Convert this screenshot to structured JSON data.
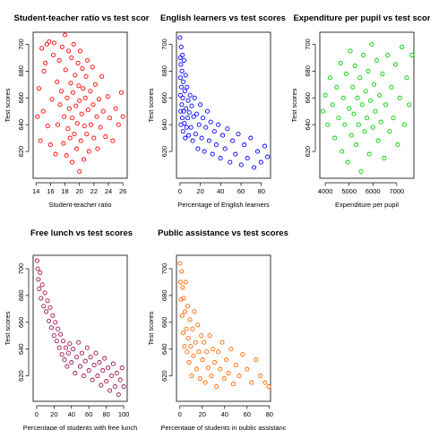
{
  "chart_data": [
    {
      "type": "scatter",
      "title": "Student-teacher ratio vs test scor",
      "xlabel": "Student-teacher ratio",
      "ylabel": "Test scores",
      "color": "#ff0000",
      "xlim": [
        13.6,
        26.6
      ],
      "ylim": [
        600,
        709
      ],
      "xticks": [
        14,
        16,
        18,
        20,
        22,
        24,
        26
      ],
      "yticks": [
        620,
        640,
        660,
        680,
        700
      ],
      "series_description": "~420 points; cloud centered near x 19-21, y 640-670; spread x 14-26, y 605-706",
      "points": [
        [
          14.2,
          646
        ],
        [
          14.4,
          667
        ],
        [
          14.6,
          628
        ],
        [
          14.8,
          697
        ],
        [
          15.0,
          650
        ],
        [
          15.1,
          680
        ],
        [
          15.3,
          686
        ],
        [
          15.5,
          700
        ],
        [
          15.6,
          639
        ],
        [
          15.8,
          702
        ],
        [
          16.0,
          625
        ],
        [
          16.2,
          659
        ],
        [
          16.4,
          692
        ],
        [
          16.5,
          701
        ],
        [
          16.7,
          618
        ],
        [
          16.9,
          672
        ],
        [
          17.0,
          640
        ],
        [
          17.2,
          688
        ],
        [
          17.3,
          655
        ],
        [
          17.5,
          665
        ],
        [
          17.6,
          698
        ],
        [
          17.8,
          626
        ],
        [
          17.9,
          646
        ],
        [
          18.0,
          707
        ],
        [
          18.1,
          681
        ],
        [
          18.2,
          617
        ],
        [
          18.3,
          660
        ],
        [
          18.4,
          637
        ],
        [
          18.5,
          695
        ],
        [
          18.6,
          652
        ],
        [
          18.7,
          630
        ],
        [
          18.8,
          671
        ],
        [
          18.9,
          690
        ],
        [
          19.0,
          612
        ],
        [
          19.0,
          645
        ],
        [
          19.1,
          664
        ],
        [
          19.2,
          700
        ],
        [
          19.3,
          633
        ],
        [
          19.4,
          677
        ],
        [
          19.5,
          654
        ],
        [
          19.6,
          622
        ],
        [
          19.7,
          641
        ],
        [
          19.8,
          686
        ],
        [
          19.9,
          669
        ],
        [
          20.0,
          605
        ],
        [
          20.0,
          658
        ],
        [
          20.1,
          695
        ],
        [
          20.2,
          628
        ],
        [
          20.3,
          648
        ],
        [
          20.4,
          682
        ],
        [
          20.5,
          667
        ],
        [
          20.6,
          614
        ],
        [
          20.7,
          639
        ],
        [
          20.8,
          660
        ],
        [
          20.9,
          676
        ],
        [
          21.0,
          633
        ],
        [
          21.1,
          688
        ],
        [
          21.2,
          651
        ],
        [
          21.3,
          620
        ],
        [
          21.5,
          665
        ],
        [
          21.6,
          640
        ],
        [
          21.8,
          683
        ],
        [
          21.9,
          655
        ],
        [
          22.0,
          630
        ],
        [
          22.2,
          670
        ],
        [
          22.4,
          646
        ],
        [
          22.5,
          622
        ],
        [
          22.7,
          659
        ],
        [
          22.9,
          638
        ],
        [
          23.1,
          676
        ],
        [
          23.3,
          650
        ],
        [
          23.6,
          631
        ],
        [
          23.9,
          661
        ],
        [
          24.2,
          645
        ],
        [
          24.6,
          628
        ],
        [
          25.0,
          652
        ],
        [
          25.4,
          640
        ],
        [
          25.8,
          664
        ],
        [
          26.0,
          646
        ]
      ]
    },
    {
      "type": "scatter",
      "title": "English learners vs test scores",
      "xlabel": "Percentage of English learners",
      "ylabel": "Test scores",
      "color": "#0000ff",
      "xlim": [
        -3.4,
        89
      ],
      "ylim": [
        600,
        709
      ],
      "xticks": [
        0,
        20,
        40,
        60,
        80
      ],
      "yticks": [
        620,
        640,
        660,
        680,
        700
      ],
      "series_description": "~420 points; dense column at x 0-10 spanning y 625-706, decreasing trend to y ~620 near x 85",
      "points": [
        [
          0.0,
          705
        ],
        [
          0.2,
          690
        ],
        [
          0.4,
          675
        ],
        [
          0.5,
          662
        ],
        [
          0.7,
          650
        ],
        [
          0.9,
          685
        ],
        [
          1.0,
          640
        ],
        [
          1.3,
          698
        ],
        [
          1.5,
          668
        ],
        [
          1.8,
          655
        ],
        [
          2.0,
          680
        ],
        [
          2.3,
          645
        ],
        [
          2.5,
          692
        ],
        [
          2.8,
          660
        ],
        [
          3.0,
          635
        ],
        [
          3.3,
          672
        ],
        [
          3.6,
          650
        ],
        [
          4.0,
          688
        ],
        [
          4.4,
          641
        ],
        [
          4.8,
          665
        ],
        [
          5.2,
          630
        ],
        [
          5.6,
          677
        ],
        [
          6.0,
          652
        ],
        [
          6.5,
          638
        ],
        [
          7.0,
          668
        ],
        [
          7.5,
          645
        ],
        [
          8.0,
          658
        ],
        [
          8.6,
          632
        ],
        [
          9.2,
          649
        ],
        [
          10.0,
          662
        ],
        [
          10.8,
          638
        ],
        [
          11.6,
          654
        ],
        [
          12.5,
          628
        ],
        [
          13.4,
          646
        ],
        [
          14.4,
          660
        ],
        [
          15.4,
          633
        ],
        [
          16.5,
          648
        ],
        [
          17.6,
          622
        ],
        [
          18.8,
          640
        ],
        [
          20.0,
          655
        ],
        [
          21.3,
          630
        ],
        [
          22.6,
          645
        ],
        [
          24.0,
          620
        ],
        [
          25.5,
          638
        ],
        [
          27.0,
          650
        ],
        [
          28.6,
          628
        ],
        [
          30.2,
          642
        ],
        [
          32.0,
          618
        ],
        [
          33.8,
          635
        ],
        [
          35.7,
          625
        ],
        [
          37.7,
          640
        ],
        [
          39.8,
          615
        ],
        [
          42.0,
          632
        ],
        [
          44.3,
          622
        ],
        [
          46.7,
          637
        ],
        [
          49.2,
          612
        ],
        [
          51.8,
          628
        ],
        [
          54.5,
          618
        ],
        [
          57.3,
          633
        ],
        [
          60.2,
          610
        ],
        [
          63.2,
          625
        ],
        [
          66.3,
          615
        ],
        [
          69.5,
          630
        ],
        [
          72.8,
          608
        ],
        [
          76.2,
          620
        ],
        [
          79.7,
          612
        ],
        [
          83.3,
          624
        ],
        [
          86.0,
          616
        ]
      ]
    },
    {
      "type": "scatter",
      "title": "Expenditure per pupil vs test scor",
      "xlabel": "Expenditure per pupil",
      "ylabel": "Test scores",
      "color": "#00cc00",
      "xlim": [
        3770,
        7720
      ],
      "ylim": [
        600,
        709
      ],
      "xticks": [
        4000,
        5000,
        6000,
        7000
      ],
      "yticks": [
        620,
        640,
        660,
        680,
        700
      ],
      "series_description": "~420 points; cloud centered near x 5000-6000, y 635-680; spread x 3900-7650, y 605-707",
      "points": [
        [
          3900,
          650
        ],
        [
          4000,
          662
        ],
        [
          4100,
          640
        ],
        [
          4200,
          675
        ],
        [
          4300,
          655
        ],
        [
          4400,
          630
        ],
        [
          4480,
          668
        ],
        [
          4560,
          645
        ],
        [
          4640,
          686
        ],
        [
          4700,
          620
        ],
        [
          4760,
          660
        ],
        [
          4820,
          640
        ],
        [
          4880,
          678
        ],
        [
          4940,
          612
        ],
        [
          5000,
          652
        ],
        [
          5050,
          695
        ],
        [
          5100,
          632
        ],
        [
          5150,
          668
        ],
        [
          5200,
          648
        ],
        [
          5250,
          684
        ],
        [
          5300,
          625
        ],
        [
          5350,
          660
        ],
        [
          5400,
          640
        ],
        [
          5450,
          675
        ],
        [
          5500,
          605
        ],
        [
          5550,
          655
        ],
        [
          5600,
          692
        ],
        [
          5650,
          635
        ],
        [
          5700,
          665
        ],
        [
          5750,
          645
        ],
        [
          5800,
          680
        ],
        [
          5850,
          618
        ],
        [
          5900,
          658
        ],
        [
          5950,
          700
        ],
        [
          6000,
          638
        ],
        [
          6050,
          670
        ],
        [
          6100,
          650
        ],
        [
          6160,
          688
        ],
        [
          6220,
          628
        ],
        [
          6280,
          662
        ],
        [
          6340,
          642
        ],
        [
          6400,
          678
        ],
        [
          6470,
          615
        ],
        [
          6540,
          655
        ],
        [
          6620,
          692
        ],
        [
          6700,
          635
        ],
        [
          6780,
          668
        ],
        [
          6860,
          645
        ],
        [
          6950,
          685
        ],
        [
          7040,
          625
        ],
        [
          7130,
          660
        ],
        [
          7220,
          698
        ],
        [
          7320,
          640
        ],
        [
          7420,
          675
        ],
        [
          7520,
          655
        ],
        [
          7640,
          692
        ]
      ]
    },
    {
      "type": "scatter",
      "title": "Free lunch vs test scores",
      "xlabel": "Percentage of students with free lunch",
      "ylabel": "Test scores",
      "color": "#a0144f",
      "xlim": [
        -4,
        104
      ],
      "ylim": [
        601,
        710
      ],
      "xticks": [
        0,
        20,
        40,
        60,
        80,
        100
      ],
      "yticks": [
        620,
        640,
        660,
        680,
        700
      ],
      "series_description": "~420 points; strong negative linear trend from y ~700 at x 0 to y ~620 at x 100",
      "points": [
        [
          0.5,
          706
        ],
        [
          1.2,
          700
        ],
        [
          2.0,
          692
        ],
        [
          3.0,
          685
        ],
        [
          4.0,
          697
        ],
        [
          5.0,
          678
        ],
        [
          6.5,
          688
        ],
        [
          8.0,
          672
        ],
        [
          9.5,
          682
        ],
        [
          11.0,
          668
        ],
        [
          12.5,
          676
        ],
        [
          14.0,
          661
        ],
        [
          15.5,
          671
        ],
        [
          17.0,
          656
        ],
        [
          18.5,
          665
        ],
        [
          20.0,
          650
        ],
        [
          21.5,
          660
        ],
        [
          23.0,
          646
        ],
        [
          24.5,
          655
        ],
        [
          26.0,
          641
        ],
        [
          27.5,
          651
        ],
        [
          29.0,
          636
        ],
        [
          30.5,
          646
        ],
        [
          32.0,
          632
        ],
        [
          33.5,
          641
        ],
        [
          35.0,
          627
        ],
        [
          36.5,
          637
        ],
        [
          38.0,
          644
        ],
        [
          40.0,
          630
        ],
        [
          42.0,
          640
        ],
        [
          44.0,
          622
        ],
        [
          46.0,
          634
        ],
        [
          48.0,
          645
        ],
        [
          50.0,
          627
        ],
        [
          52.0,
          637
        ],
        [
          54.0,
          620
        ],
        [
          56.0,
          631
        ],
        [
          58.0,
          641
        ],
        [
          60.0,
          624
        ],
        [
          62.0,
          634
        ],
        [
          64.0,
          617
        ],
        [
          66.0,
          628
        ],
        [
          68.0,
          637
        ],
        [
          70.0,
          620
        ],
        [
          72.0,
          630
        ],
        [
          74.0,
          613
        ],
        [
          76.0,
          624
        ],
        [
          78.0,
          633
        ],
        [
          80.0,
          616
        ],
        [
          82.0,
          626
        ],
        [
          84.0,
          609
        ],
        [
          86.0,
          620
        ],
        [
          88.0,
          629
        ],
        [
          90.0,
          612
        ],
        [
          92.0,
          622
        ],
        [
          94.0,
          606
        ],
        [
          96.0,
          617
        ],
        [
          98.0,
          626
        ],
        [
          100.0,
          612
        ]
      ]
    },
    {
      "type": "scatter",
      "title": "Public assistance vs test scores",
      "xlabel": "Percentage of students in public assistanc",
      "ylabel": "Test scores",
      "color": "#ff6600",
      "xlim": [
        -3,
        81
      ],
      "ylim": [
        601,
        710
      ],
      "xticks": [
        0,
        20,
        40,
        60,
        80
      ],
      "yticks": [
        620,
        640,
        660,
        680,
        700
      ],
      "series_description": "~420 points; dense at x 0-30 spanning y 615-706, decreasing trend, sparse tail to x ~80",
      "points": [
        [
          0.0,
          704
        ],
        [
          0.5,
          690
        ],
        [
          1.0,
          677
        ],
        [
          1.5,
          698
        ],
        [
          2.0,
          665
        ],
        [
          2.5,
          686
        ],
        [
          3.0,
          652
        ],
        [
          3.5,
          678
        ],
        [
          4.0,
          642
        ],
        [
          4.6,
          668
        ],
        [
          5.2,
          690
        ],
        [
          5.8,
          655
        ],
        [
          6.4,
          638
        ],
        [
          7.0,
          672
        ],
        [
          7.6,
          648
        ],
        [
          8.3,
          630
        ],
        [
          9.0,
          662
        ],
        [
          9.7,
          642
        ],
        [
          10.5,
          620
        ],
        [
          11.3,
          655
        ],
        [
          12.1,
          635
        ],
        [
          13.0,
          668
        ],
        [
          14.0,
          645
        ],
        [
          15.0,
          625
        ],
        [
          16.0,
          658
        ],
        [
          17.0,
          638
        ],
        [
          18.1,
          618
        ],
        [
          19.2,
          650
        ],
        [
          20.3,
          632
        ],
        [
          21.5,
          645
        ],
        [
          22.7,
          615
        ],
        [
          24.0,
          638
        ],
        [
          25.3,
          626
        ],
        [
          26.7,
          650
        ],
        [
          28.1,
          620
        ],
        [
          29.6,
          640
        ],
        [
          31.1,
          630
        ],
        [
          32.7,
          612
        ],
        [
          34.3,
          638
        ],
        [
          36.0,
          625
        ],
        [
          37.8,
          645
        ],
        [
          39.6,
          618
        ],
        [
          41.5,
          632
        ],
        [
          43.5,
          622
        ],
        [
          45.6,
          640
        ],
        [
          47.8,
          614
        ],
        [
          50.0,
          628
        ],
        [
          53.0,
          620
        ],
        [
          56.0,
          636
        ],
        [
          60.0,
          625
        ],
        [
          64.0,
          615
        ],
        [
          68.0,
          632
        ],
        [
          72.0,
          620
        ],
        [
          76.0,
          615
        ],
        [
          79.5,
          612
        ]
      ]
    }
  ]
}
